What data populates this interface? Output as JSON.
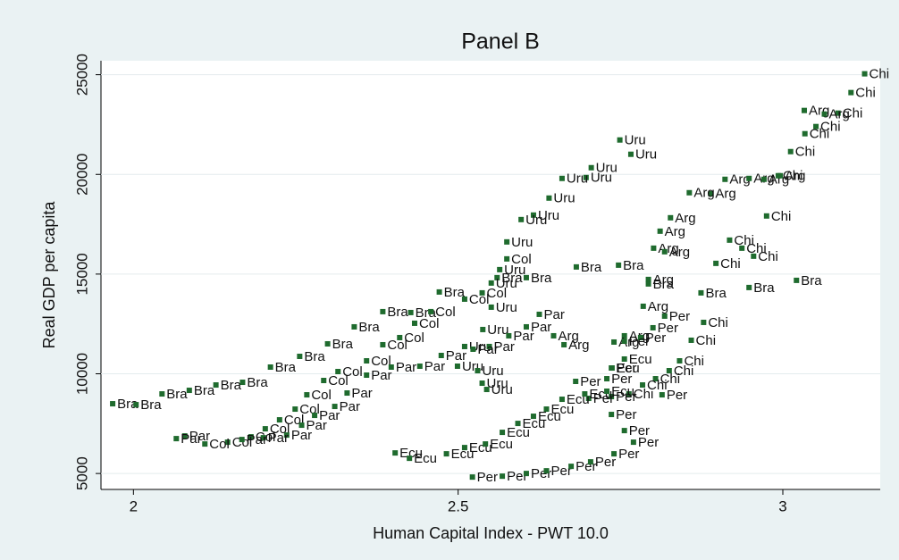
{
  "chart_data": {
    "type": "scatter",
    "title": "Panel B",
    "xlabel": "Human Capital Index - PWT 10.0",
    "ylabel": "Real GDP per capita",
    "xlim": [
      1.95,
      3.15
    ],
    "ylim": [
      4200,
      25700
    ],
    "xticks": [
      2,
      2.5,
      3
    ],
    "yticks": [
      5000,
      10000,
      15000,
      20000,
      25000
    ],
    "grid": true,
    "series": [
      {
        "name": "Bra",
        "color": "#1f6b2e",
        "x": [
          1.968,
          2.004,
          2.044,
          2.086,
          2.127,
          2.168,
          2.211,
          2.256,
          2.299,
          2.34,
          2.384,
          2.427,
          2.471,
          2.56,
          2.605,
          2.682,
          2.747,
          2.793,
          2.874,
          2.948,
          3.021
        ],
        "values": [
          8498,
          8453,
          8991,
          9170,
          9439,
          9574,
          10336,
          10874,
          11502,
          12354,
          13117,
          13072,
          14103,
          14821,
          14821,
          15359,
          15448,
          14507,
          14058,
          14327,
          14686
        ]
      },
      {
        "name": "Chi",
        "color": "#1f6b2e",
        "x": [
          3.126,
          3.105,
          3.085,
          3.051,
          3.034,
          3.012,
          2.993,
          2.975,
          2.918,
          2.937,
          2.955,
          2.897,
          2.878,
          2.859,
          2.841,
          2.825,
          2.804,
          2.784,
          2.763
        ],
        "values": [
          25045,
          24103,
          23072,
          22399,
          22040,
          21143,
          19933,
          17915,
          16704,
          16300,
          15897,
          15538,
          12578,
          11682,
          10650,
          10157,
          9753,
          9439,
          8991
        ]
      },
      {
        "name": "Arg",
        "color": "#1f6b2e",
        "x": [
          3.033,
          3.064,
          2.911,
          2.889,
          2.856,
          2.948,
          2.971,
          2.996,
          2.827,
          2.811,
          2.801,
          2.818,
          2.793,
          2.785,
          2.756,
          2.74,
          2.647,
          2.663
        ],
        "values": [
          23206,
          23027,
          19753,
          19036,
          19081,
          19798,
          19753,
          19933,
          17825,
          17152,
          16300,
          16121,
          14731,
          13386,
          11906,
          11592,
          11906,
          11457
        ]
      },
      {
        "name": "Uru",
        "color": "#1f6b2e",
        "x": [
          2.749,
          2.766,
          2.705,
          2.697,
          2.66,
          2.64,
          2.616,
          2.597,
          2.575,
          2.564,
          2.551,
          2.551,
          2.538,
          2.51,
          2.499,
          2.53,
          2.537,
          2.544
        ],
        "values": [
          21726,
          21009,
          20336,
          19843,
          19798,
          18812,
          17960,
          17735,
          16614,
          15224,
          14552,
          13341,
          12220,
          11368,
          10381,
          10157,
          9529,
          9215
        ]
      },
      {
        "name": "Col",
        "color": "#1f6b2e",
        "x": [
          2.575,
          2.537,
          2.51,
          2.458,
          2.433,
          2.41,
          2.384,
          2.359,
          2.315,
          2.293,
          2.267,
          2.249,
          2.225,
          2.203,
          2.181,
          2.145,
          2.11
        ],
        "values": [
          15762,
          14058,
          13744,
          13117,
          12534,
          11816,
          11457,
          10650,
          10112,
          9664,
          8946,
          8229,
          7691,
          7242,
          6839,
          6570,
          6480
        ]
      },
      {
        "name": "Par",
        "color": "#1f6b2e",
        "x": [
          2.625,
          2.605,
          2.578,
          2.548,
          2.523,
          2.474,
          2.441,
          2.397,
          2.359,
          2.329,
          2.31,
          2.279,
          2.259,
          2.236,
          2.2,
          2.167,
          2.079,
          2.066
        ],
        "values": [
          12982,
          12354,
          11906,
          11368,
          11233,
          10919,
          10381,
          10336,
          9933,
          9036,
          8363,
          7915,
          7422,
          6928,
          6794,
          6704,
          6883,
          6749
        ]
      },
      {
        "name": "Per",
        "color": "#1f6b2e",
        "x": [
          2.522,
          2.568,
          2.605,
          2.636,
          2.674,
          2.704,
          2.74,
          2.77,
          2.756,
          2.736,
          2.736,
          2.701,
          2.814,
          2.818,
          2.8,
          2.781,
          2.756,
          2.729,
          2.736,
          2.681
        ],
        "values": [
          4821,
          4865,
          5000,
          5135,
          5359,
          5583,
          5987,
          6570,
          7152,
          7960,
          8857,
          8767,
          8946,
          12892,
          12309,
          11816,
          11637,
          9753,
          10291,
          9619
        ]
      },
      {
        "name": "Ecu",
        "color": "#1f6b2e",
        "x": [
          2.403,
          2.425,
          2.482,
          2.51,
          2.542,
          2.568,
          2.592,
          2.616,
          2.636,
          2.66,
          2.695,
          2.729,
          2.737,
          2.756
        ],
        "values": [
          6031,
          5762,
          5987,
          6300,
          6480,
          7063,
          7511,
          7870,
          8229,
          8722,
          8991,
          9126,
          10291,
          10740
        ]
      }
    ]
  }
}
